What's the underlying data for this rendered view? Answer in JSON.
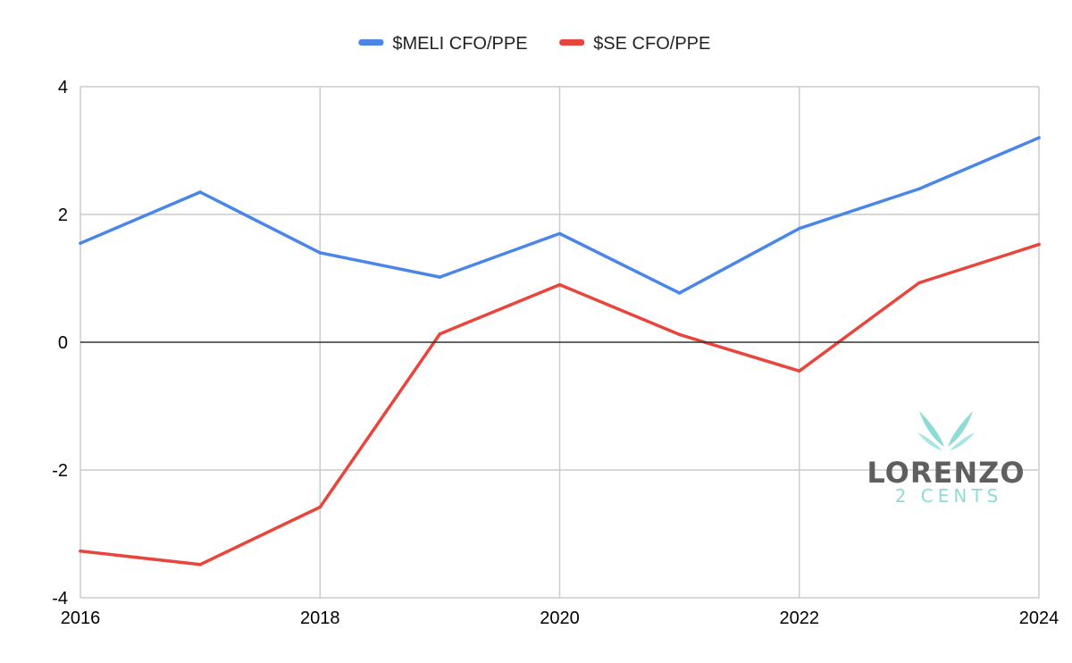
{
  "chart_data": {
    "type": "line",
    "title": "",
    "xlabel": "",
    "ylabel": "",
    "x": [
      2016,
      2017,
      2018,
      2019,
      2020,
      2021,
      2022,
      2023,
      2024
    ],
    "xlim": [
      2016,
      2024
    ],
    "ylim": [
      -4,
      4
    ],
    "x_ticks": [
      "2016",
      "2018",
      "2020",
      "2022",
      "2024"
    ],
    "y_ticks": [
      "4",
      "2",
      "0",
      "-2",
      "-4"
    ],
    "grid": true,
    "legend_position": "top-center",
    "series": [
      {
        "name": "$MELI  CFO/PPE",
        "color": "#4a86e8",
        "values": [
          1.55,
          2.35,
          1.4,
          1.02,
          1.7,
          0.77,
          1.78,
          2.4,
          3.2
        ]
      },
      {
        "name": "$SE  CFO/PPE",
        "color": "#e8453c",
        "values": [
          -3.27,
          -3.48,
          -2.58,
          0.13,
          0.9,
          0.12,
          -0.45,
          0.93,
          1.53
        ]
      }
    ]
  },
  "watermark": {
    "main": "LORENZO",
    "sub": "2 CENTS",
    "icon": "wings-logo-icon",
    "main_color": "#5f5f5f",
    "accent_color": "#8fdcd6"
  }
}
